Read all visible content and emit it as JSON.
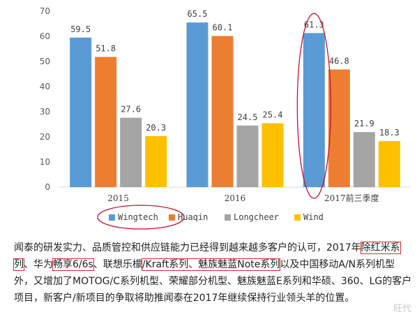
{
  "chart_data": {
    "type": "bar",
    "title": "",
    "xlabel": "",
    "ylabel": "",
    "ylim": [
      0,
      70
    ],
    "yticks": [
      0,
      10,
      20,
      30,
      40,
      50,
      60,
      70
    ],
    "grid": false,
    "legend_position": "bottom",
    "categories": [
      "2015",
      "2016",
      "2017前三季度"
    ],
    "series": [
      {
        "name": "Wingtech",
        "color": "#5b9bd5",
        "values": [
          59.5,
          65.5,
          61.3
        ],
        "labels": [
          "59.5",
          "65.5",
          "61.3"
        ]
      },
      {
        "name": "Huaqin",
        "color": "#ed7d31",
        "values": [
          51.8,
          60.1,
          46.8
        ],
        "labels": [
          "51.8",
          "60.1",
          "46.8"
        ]
      },
      {
        "name": "Longcheer",
        "color": "#a5a5a5",
        "values": [
          27.6,
          24.5,
          21.9
        ],
        "labels": [
          "27.6",
          "24.5",
          "21.9"
        ]
      },
      {
        "name": "Wind",
        "color": "#ffc000",
        "values": [
          20.3,
          25.4,
          18.3
        ],
        "labels": [
          "20.3",
          "25.4",
          "18.3"
        ]
      }
    ],
    "annotations": [
      "red ellipse around 2017前三季度 Wingtech bar",
      "red ellipse around Wingtech legend entry"
    ]
  },
  "caption": {
    "p1": "闻泰的研发实力、品质管控和供应链能力已经得到越来越多客户的认可，2017年",
    "hl1": "除红米系列",
    "p2": "、华为",
    "hl2": "畅享6/6s",
    "p3": "、联想乐檬",
    "hl3": "/Kraft系列、魅族魅蓝Note系列",
    "p4": "以及中国移动A/N系列机型外，又增加了MOTOG/C系列机型、荣耀部分机型、魅族魅蓝E系列和华硕、360、LG的客户项目，新客户/新项目的争取将助推闻泰在2017年继续保持行业领头羊的位置。"
  },
  "watermark": "旺代"
}
